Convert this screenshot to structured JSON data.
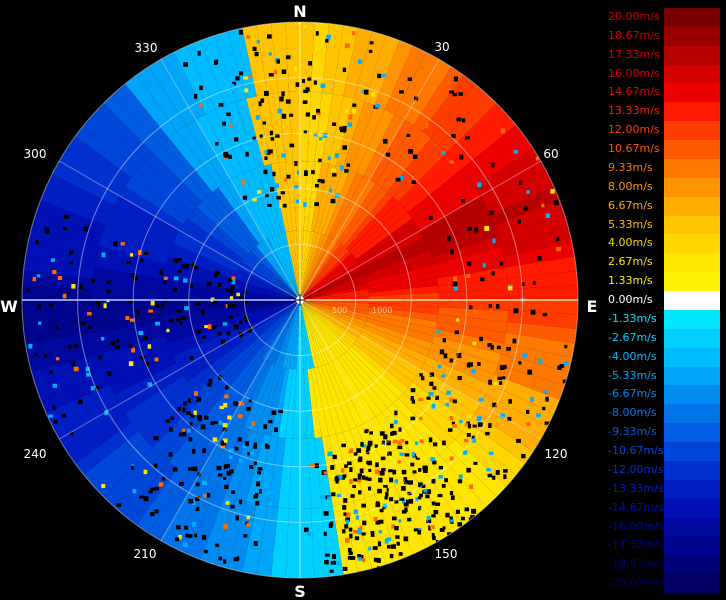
{
  "compass": {
    "north": "N",
    "south": "S",
    "east": "E",
    "west": "W"
  },
  "bearings": [
    "30",
    "60",
    "120",
    "150",
    "210",
    "240",
    "300",
    "330"
  ],
  "range_rings": [
    "500",
    "1000"
  ],
  "legend": {
    "entries": [
      {
        "label": "20.00m/s",
        "color": "#7a0000",
        "text_color": "#d00000"
      },
      {
        "label": "18.67m/s",
        "color": "#9a0000",
        "text_color": "#d00000"
      },
      {
        "label": "17.33m/s",
        "color": "#b80000",
        "text_color": "#d80000"
      },
      {
        "label": "16.00m/s",
        "color": "#d40000",
        "text_color": "#e00000"
      },
      {
        "label": "14.67m/s",
        "color": "#ec0000",
        "text_color": "#ee0000"
      },
      {
        "label": "13.33m/s",
        "color": "#ff1a00",
        "text_color": "#ff1a00"
      },
      {
        "label": "12.00m/s",
        "color": "#ff3c00",
        "text_color": "#ff3c00"
      },
      {
        "label": "10.67m/s",
        "color": "#ff5a00",
        "text_color": "#ff5a00"
      },
      {
        "label": "9.33m/s",
        "color": "#ff7800",
        "text_color": "#ff7800"
      },
      {
        "label": "8.00m/s",
        "color": "#ff9400",
        "text_color": "#ff9400"
      },
      {
        "label": "6.67m/s",
        "color": "#ffad00",
        "text_color": "#ffad00"
      },
      {
        "label": "5.33m/s",
        "color": "#ffc400",
        "text_color": "#ffc400"
      },
      {
        "label": "4.00m/s",
        "color": "#ffd700",
        "text_color": "#ffd700"
      },
      {
        "label": "2.67m/s",
        "color": "#ffe600",
        "text_color": "#ffe600"
      },
      {
        "label": "1.33m/s",
        "color": "#fff200",
        "text_color": "#fff200"
      },
      {
        "label": "0.00m/s",
        "color": "#ffffff",
        "text_color": "#ffffff"
      },
      {
        "label": "-1.33m/s",
        "color": "#00e5ff",
        "text_color": "#00e5ff"
      },
      {
        "label": "-2.67m/s",
        "color": "#00d0ff",
        "text_color": "#00d0ff"
      },
      {
        "label": "-4.00m/s",
        "color": "#00bbff",
        "text_color": "#00bbff"
      },
      {
        "label": "-5.33m/s",
        "color": "#00a4f8",
        "text_color": "#00a4f8"
      },
      {
        "label": "-6.67m/s",
        "color": "#008cf0",
        "text_color": "#008cf0"
      },
      {
        "label": "-8.00m/s",
        "color": "#0074e8",
        "text_color": "#0074e8"
      },
      {
        "label": "-9.33m/s",
        "color": "#005ce0",
        "text_color": "#005ce0"
      },
      {
        "label": "-10.67m/s",
        "color": "#0046d8",
        "text_color": "#0046d8"
      },
      {
        "label": "-12.00m/s",
        "color": "#0030d0",
        "text_color": "#0030d0"
      },
      {
        "label": "-13.33m/s",
        "color": "#001ec4",
        "text_color": "#001ec4"
      },
      {
        "label": "-14.67m/s",
        "color": "#0010b4",
        "text_color": "#0010b4"
      },
      {
        "label": "-16.00m/s",
        "color": "#0008a0",
        "text_color": "#0008a0"
      },
      {
        "label": "-17.33m/s",
        "color": "#00048c",
        "text_color": "#00048c"
      },
      {
        "label": "-18.67m/s",
        "color": "#000278",
        "text_color": "#000278"
      },
      {
        "label": "-20.00m/s",
        "color": "#000064",
        "text_color": "#000064"
      }
    ]
  },
  "colors": {
    "background": "#000000",
    "grid": "#ffffff",
    "north_axis": "#ffe066",
    "south_axis": "#66ddff",
    "east_axis": "#ffd0a0",
    "west_axis": "#a8c8ff"
  }
}
